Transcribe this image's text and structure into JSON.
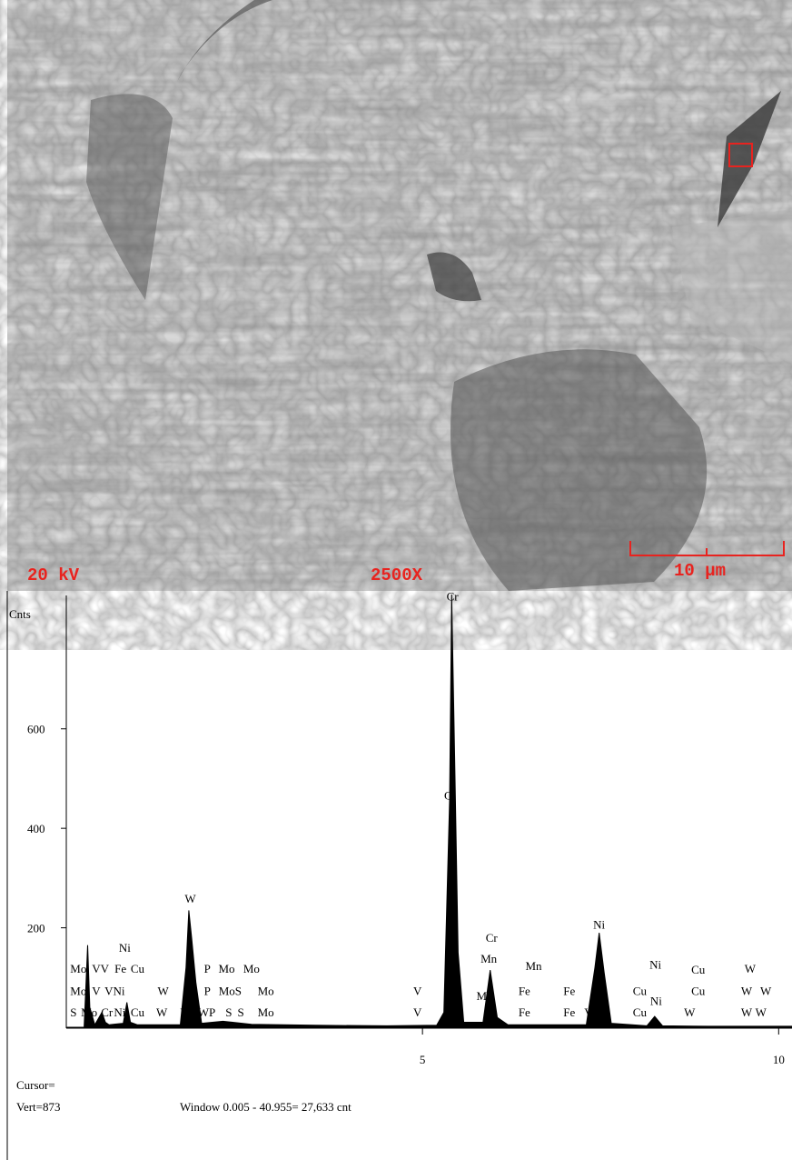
{
  "image": {
    "voltage": "20 kV",
    "magnification": "2500X",
    "scale_bar": "10 µm"
  },
  "chart_data": {
    "type": "spectrum",
    "y_label": "Cnts",
    "x": [
      0,
      0.25,
      0.3,
      0.33,
      0.4,
      0.5,
      0.55,
      0.6,
      0.8,
      0.85,
      0.9,
      1.0,
      1.6,
      1.68,
      1.72,
      1.76,
      1.82,
      1.9,
      2.2,
      2.6,
      3.5,
      4.5,
      5.2,
      5.3,
      5.38,
      5.41,
      5.45,
      5.5,
      5.58,
      5.85,
      5.95,
      6.05,
      6.2,
      7.3,
      7.42,
      7.48,
      7.55,
      7.65,
      8.15,
      8.26,
      8.37,
      9.0,
      10.2
    ],
    "values": [
      0,
      0,
      165,
      40,
      5,
      30,
      10,
      5,
      8,
      50,
      10,
      5,
      5,
      120,
      235,
      180,
      90,
      8,
      12,
      6,
      4,
      3,
      4,
      30,
      455,
      870,
      550,
      150,
      10,
      10,
      115,
      20,
      5,
      5,
      120,
      190,
      110,
      8,
      3,
      22,
      3,
      2,
      2
    ],
    "color": "#000000",
    "xlim": [
      0,
      10.2
    ],
    "ylim": [
      0,
      870
    ],
    "xticks": [
      5,
      10
    ],
    "yticks": [
      200,
      400,
      600
    ],
    "annotations": [
      {
        "text": "S",
        "x": 0.1,
        "y": 22
      },
      {
        "text": "Mo",
        "x": 0.32,
        "y": 22
      },
      {
        "text": "Cr",
        "x": 0.57,
        "y": 22
      },
      {
        "text": "Ni",
        "x": 0.75,
        "y": 22
      },
      {
        "text": "Cu",
        "x": 1.0,
        "y": 22
      },
      {
        "text": "W",
        "x": 1.34,
        "y": 22
      },
      {
        "text": "W",
        "x": 1.68,
        "y": 22
      },
      {
        "text": "WP",
        "x": 1.97,
        "y": 22
      },
      {
        "text": "S",
        "x": 2.28,
        "y": 22
      },
      {
        "text": "S",
        "x": 2.45,
        "y": 22
      },
      {
        "text": "Mo",
        "x": 2.8,
        "y": 22
      },
      {
        "text": "V",
        "x": 4.93,
        "y": 22
      },
      {
        "text": "Fe",
        "x": 6.43,
        "y": 22
      },
      {
        "text": "Fe",
        "x": 7.06,
        "y": 22
      },
      {
        "text": "V",
        "x": 7.33,
        "y": 22
      },
      {
        "text": "Cu",
        "x": 8.05,
        "y": 22
      },
      {
        "text": "W",
        "x": 8.75,
        "y": 22
      },
      {
        "text": "W",
        "x": 9.55,
        "y": 22
      },
      {
        "text": "W",
        "x": 9.75,
        "y": 22
      },
      {
        "text": "Mo",
        "x": 0.17,
        "y": 65
      },
      {
        "text": "V",
        "x": 0.42,
        "y": 65
      },
      {
        "text": "VNi",
        "x": 0.68,
        "y": 65
      },
      {
        "text": "W",
        "x": 1.36,
        "y": 65
      },
      {
        "text": "P",
        "x": 1.98,
        "y": 65
      },
      {
        "text": "MoS",
        "x": 2.3,
        "y": 65
      },
      {
        "text": "Mo",
        "x": 2.8,
        "y": 65
      },
      {
        "text": "V",
        "x": 4.93,
        "y": 65
      },
      {
        "text": "M",
        "x": 5.83,
        "y": 55
      },
      {
        "text": "Fe",
        "x": 6.43,
        "y": 65
      },
      {
        "text": "Fe",
        "x": 7.06,
        "y": 65
      },
      {
        "text": "Cu",
        "x": 8.05,
        "y": 65
      },
      {
        "text": "Ni",
        "x": 8.28,
        "y": 45
      },
      {
        "text": "Cu",
        "x": 8.87,
        "y": 65
      },
      {
        "text": "W",
        "x": 9.55,
        "y": 65
      },
      {
        "text": "W",
        "x": 9.82,
        "y": 65
      },
      {
        "text": "Mo",
        "x": 0.17,
        "y": 110
      },
      {
        "text": "VV",
        "x": 0.48,
        "y": 110
      },
      {
        "text": "Fe",
        "x": 0.76,
        "y": 110
      },
      {
        "text": "Cu",
        "x": 1.0,
        "y": 110
      },
      {
        "text": "P",
        "x": 1.98,
        "y": 110
      },
      {
        "text": "Mo",
        "x": 2.25,
        "y": 110
      },
      {
        "text": "Mo",
        "x": 2.6,
        "y": 110
      },
      {
        "text": "Mn",
        "x": 5.93,
        "y": 130
      },
      {
        "text": "Mn",
        "x": 6.56,
        "y": 115
      },
      {
        "text": "Ni",
        "x": 8.27,
        "y": 118
      },
      {
        "text": "Cu",
        "x": 8.87,
        "y": 108
      },
      {
        "text": "W",
        "x": 9.6,
        "y": 110
      },
      {
        "text": "Ni",
        "x": 0.82,
        "y": 152
      },
      {
        "text": "W",
        "x": 1.74,
        "y": 250
      },
      {
        "text": "Cr",
        "x": 5.97,
        "y": 172
      },
      {
        "text": "Ni",
        "x": 7.48,
        "y": 198
      },
      {
        "text": "Cr",
        "x": 5.42,
        "y": 858
      },
      {
        "text": "C",
        "x": 5.36,
        "y": 458
      }
    ]
  },
  "footer": {
    "cursor": "Cursor=",
    "vert": "Vert=873",
    "window": "Window 0.005 - 40.955=  27,633 cnt"
  }
}
